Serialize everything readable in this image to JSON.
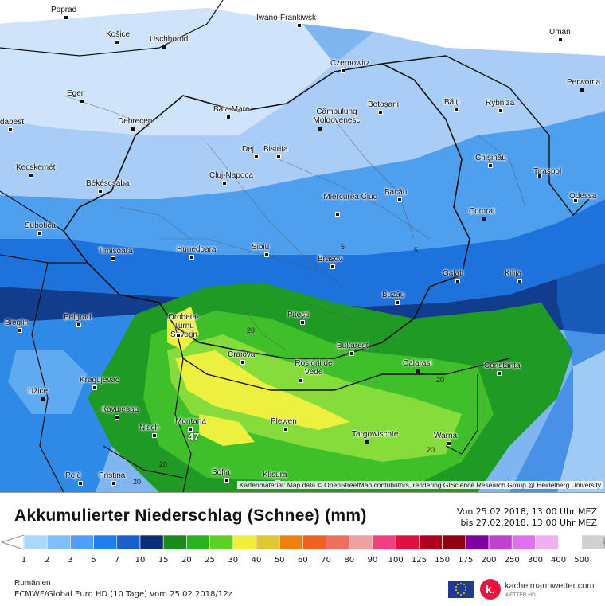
{
  "map": {
    "cities": [
      {
        "name": "Poprad"
      },
      {
        "name": "Iwano-Frankiwsk"
      },
      {
        "name": "Košice"
      },
      {
        "name": "Uschhorod"
      },
      {
        "name": "Uman"
      },
      {
        "name": "Czernowitz"
      },
      {
        "name": "Eger"
      },
      {
        "name": "Baia Mare"
      },
      {
        "name": "Câmpulung Moldovenesc"
      },
      {
        "name": "Botoșani"
      },
      {
        "name": "Bălți"
      },
      {
        "name": "Rybniza"
      },
      {
        "name": "Perwoma"
      },
      {
        "name": "Debrecen"
      },
      {
        "name": "dapest"
      },
      {
        "name": "Dej"
      },
      {
        "name": "Bistrița"
      },
      {
        "name": "Chișinău"
      },
      {
        "name": "Kecskemét"
      },
      {
        "name": "Cluj-Napoca"
      },
      {
        "name": "Tiraspol"
      },
      {
        "name": "Békéscsaba"
      },
      {
        "name": "Miercurea Ciuc"
      },
      {
        "name": "Bacău"
      },
      {
        "name": "Odessa"
      },
      {
        "name": "Comrat"
      },
      {
        "name": "Subotica"
      },
      {
        "name": "Timișoara"
      },
      {
        "name": "Hunedoara"
      },
      {
        "name": "Sibiu"
      },
      {
        "name": "Brașov"
      },
      {
        "name": "Galați"
      },
      {
        "name": "Kilija"
      },
      {
        "name": "Buzău"
      },
      {
        "name": "Drobeta-Turnu Severin"
      },
      {
        "name": "Pitești"
      },
      {
        "name": "Belgrad"
      },
      {
        "name": "Bieglin"
      },
      {
        "name": "Bukarest"
      },
      {
        "name": "Craiova"
      },
      {
        "name": "Roșiorii de Vede"
      },
      {
        "name": "Calarasi"
      },
      {
        "name": "Constanța"
      },
      {
        "name": "Kragujevac"
      },
      {
        "name": "Užice"
      },
      {
        "name": "Крушевац"
      },
      {
        "name": "Montana"
      },
      {
        "name": "Plewen"
      },
      {
        "name": "Nisch"
      },
      {
        "name": "Targowischte"
      },
      {
        "name": "Warna"
      },
      {
        "name": "Pejë"
      },
      {
        "name": "Pristina"
      },
      {
        "name": "Sofia"
      },
      {
        "name": "Klisura"
      }
    ],
    "contours": [
      "5",
      "5",
      "20",
      "20",
      "20",
      "20",
      "20"
    ],
    "peak_value": "47",
    "credit": "Kartenmaterial: Map data © OpenStreetMap contributors, rendering GIScience Research Group @ Heidelberg University"
  },
  "legend": {
    "title": "Akkumulierter Niederschlag (Schnee) (mm)",
    "period_from": "Von 25.02.2018, 13:00 Uhr MEZ",
    "period_to": "bis 27.02.2018, 13:00 Uhr MEZ",
    "scale_labels": [
      "1",
      "2",
      "3",
      "5",
      "7",
      "10",
      "15",
      "20",
      "25",
      "30",
      "40",
      "50",
      "60",
      "70",
      "80",
      "90",
      "100",
      "125",
      "150",
      "175",
      "200",
      "250",
      "300",
      "400",
      "500"
    ],
    "scale_colors": [
      "#a8d8ff",
      "#7fbfff",
      "#4f9fff",
      "#1e7ff0",
      "#1860d0",
      "#0b2e7a",
      "#1a8a1a",
      "#28b41e",
      "#5ed21e",
      "#f0f03c",
      "#e0c830",
      "#f08010",
      "#f06020",
      "#f07060",
      "#f0a0a0",
      "#f04080",
      "#e01040",
      "#b00020",
      "#900010",
      "#8000a0",
      "#c040d0",
      "#e070f0",
      "#f0b0f0",
      "#ffffff",
      "#d0d0d0"
    ],
    "region": "Rumänien",
    "model": "ECMWF/Global Euro HD (10 Tage) vom 25.02.2018/12z",
    "brand": "kachelmannwetter.com",
    "brand_sub": "WETTER HD",
    "brand_logo_letter": "k."
  }
}
